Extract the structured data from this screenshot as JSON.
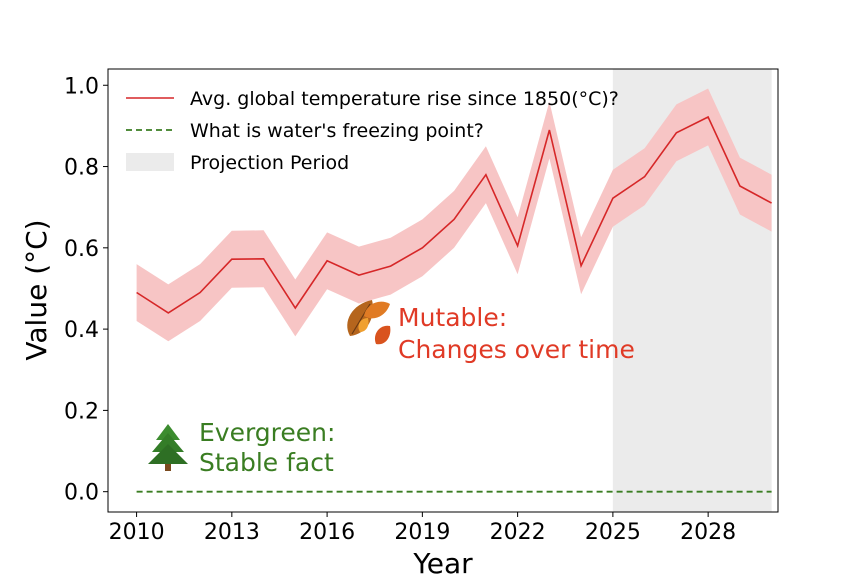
{
  "chart_data": {
    "type": "line",
    "xlabel": "Year",
    "ylabel": "Value (°C)",
    "xlim": [
      2009.1,
      2030.2
    ],
    "ylim": [
      -0.05,
      1.04
    ],
    "x_ticks": [
      2010,
      2013,
      2016,
      2019,
      2022,
      2025,
      2028
    ],
    "y_ticks": [
      0.0,
      0.2,
      0.4,
      0.6,
      0.8,
      1.0
    ],
    "x_tick_labels": [
      "2010",
      "2013",
      "2016",
      "2019",
      "2022",
      "2025",
      "2028"
    ],
    "y_tick_labels": [
      "0.0",
      "0.2",
      "0.4",
      "0.6",
      "0.8",
      "1.0"
    ],
    "projection_period": {
      "start": 2025,
      "end": 2030,
      "label": "Projection Period",
      "color": "#ebebeb"
    },
    "series": [
      {
        "name": "Avg. global temperature rise since 1850(°C)?",
        "color": "#d62728",
        "band_color": "#f7c5c5",
        "style": "solid",
        "x": [
          2010,
          2011,
          2012,
          2013,
          2014,
          2015,
          2016,
          2017,
          2018,
          2019,
          2020,
          2021,
          2022,
          2023,
          2024,
          2025,
          2026,
          2027,
          2028,
          2029,
          2030
        ],
        "values": [
          0.49,
          0.44,
          0.49,
          0.572,
          0.573,
          0.452,
          0.568,
          0.533,
          0.555,
          0.6,
          0.67,
          0.78,
          0.605,
          0.89,
          0.556,
          0.722,
          0.775,
          0.883,
          0.922,
          0.752,
          0.71
        ],
        "band_halfwidth": 0.07
      },
      {
        "name": "What is water's freezing point?",
        "color": "#3a7d22",
        "style": "dashed",
        "x": [
          2010,
          2030
        ],
        "values": [
          0.0,
          0.0
        ]
      }
    ],
    "annotations": [
      {
        "icon": "🍂",
        "lines": [
          "Mutable:",
          "Changes over time"
        ],
        "color": "#e03a26"
      },
      {
        "icon": "🌲",
        "lines": [
          "Evergreen:",
          "Stable fact"
        ],
        "color": "#3a7d22"
      }
    ]
  }
}
